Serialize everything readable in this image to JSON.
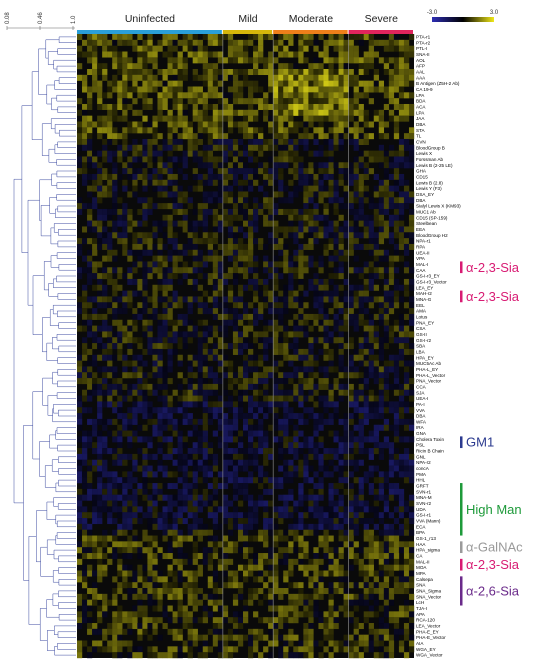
{
  "chart_data": {
    "type": "heatmap",
    "title": "",
    "colorbar": {
      "min_label": "-3.0",
      "max_label": "3.0",
      "low_color": "#2d2db4",
      "mid_color": "#000000",
      "high_color": "#f0e818"
    },
    "dendrogram_scale": {
      "labels": [
        "0.08",
        "0.46",
        "1.0"
      ]
    },
    "groups": [
      {
        "name": "Uninfected",
        "color": "#2a9fd8",
        "columns": 29
      },
      {
        "name": "Mild",
        "color": "#d6b70a",
        "columns": 10
      },
      {
        "name": "Moderate",
        "color": "#ee7f1a",
        "columns": 15
      },
      {
        "name": "Severe",
        "color": "#e0245c",
        "columns": 13
      }
    ],
    "rows": [
      "PTA-r1",
      "PTA-r2",
      "PTL-I",
      "SNA-II",
      "AOL",
      "AFP",
      "AAL",
      "AAA",
      "B Antigen (Z5H-2 Ab)",
      "CA 19-9",
      "LPA",
      "BDA",
      "ACA",
      "LPA",
      "JAA",
      "DBA",
      "STA",
      "TL",
      "CVN",
      "BloodGroup B",
      "Lewis X",
      "Forssman Ab",
      "Lewis B (2-25 LE)",
      "GHA",
      "CD15",
      "Lewis B (2.8)",
      "Lewis Y (F3)",
      "DSA_EY",
      "DBA",
      "Sialyl Lewis X (KM93)",
      "MUC1 Ab",
      "CD15 (SP-159)",
      "Steelbean",
      "EEA",
      "BloodGroup H2",
      "NPA-r1",
      "RPA",
      "UEA-II",
      "VPA",
      "MAL-I",
      "CAA",
      "GS-I-r3_EY",
      "GS-I-r3_Vector",
      "LEA_EY",
      "MAH-r2",
      "MNA-G",
      "EEL",
      "AMA",
      "Lotus",
      "PNA_EY",
      "CSA",
      "GS-II",
      "GS-I-r2",
      "SBA",
      "LBA",
      "HPA_EY",
      "MUC5Ac Ab",
      "PHA-L_EY",
      "PHA-L_Vector",
      "PNA_Vector",
      "CCA",
      "SJA",
      "UEA-I",
      "PA-I",
      "VVA",
      "DBA",
      "WFA",
      "IRA",
      "GNA",
      "Cholera Toxin",
      "PSL",
      "Ricin B Chain",
      "GNL",
      "NPA-r2",
      "concA",
      "PMA",
      "HHL",
      "GRFT",
      "SVN-r1",
      "MNA-M",
      "SVN-r2",
      "UDA",
      "GS-I-r1",
      "VVA (Mann)",
      "ECA",
      "BPA",
      "GS-1_r13",
      "HAA",
      "HPA_sigma",
      "CA",
      "MAL-II",
      "MOA",
      "MPA",
      "Calsepa",
      "SNA",
      "SNA_Sigma",
      "SNA_Vector",
      "LcH",
      "TJA-I",
      "APA",
      "RCA-120",
      "LEA_Vector",
      "PHA-E_EY",
      "PHA-E_Vector",
      "AIA",
      "WGA_EY",
      "WGA_Vector"
    ],
    "annotations": [
      {
        "label": "α-2,3-Sia",
        "color": "#d81b73",
        "rows": [
          "MAL-I",
          "CAA"
        ]
      },
      {
        "label": "α-2,3-Sia",
        "color": "#d81b73",
        "rows": [
          "MAH-r2",
          "MNA-G"
        ]
      },
      {
        "label": "GM1",
        "color": "#2b3a8f",
        "rows": [
          "Cholera Toxin",
          "PSL"
        ]
      },
      {
        "label": "High Man",
        "color": "#1e9a3a",
        "rows": [
          "GRFT",
          "BPA"
        ]
      },
      {
        "label": "α-GalNAc",
        "color": "#9a9a9a",
        "rows": [
          "HAA",
          "HPA_sigma"
        ]
      },
      {
        "label": "α-2,3-Sia",
        "color": "#d81b73",
        "rows": [
          "MAL-II",
          "MOA"
        ]
      },
      {
        "label": "α-2,6-Sia",
        "color": "#6a2a8a",
        "rows": [
          "Calsepa",
          "LcH"
        ]
      }
    ]
  }
}
